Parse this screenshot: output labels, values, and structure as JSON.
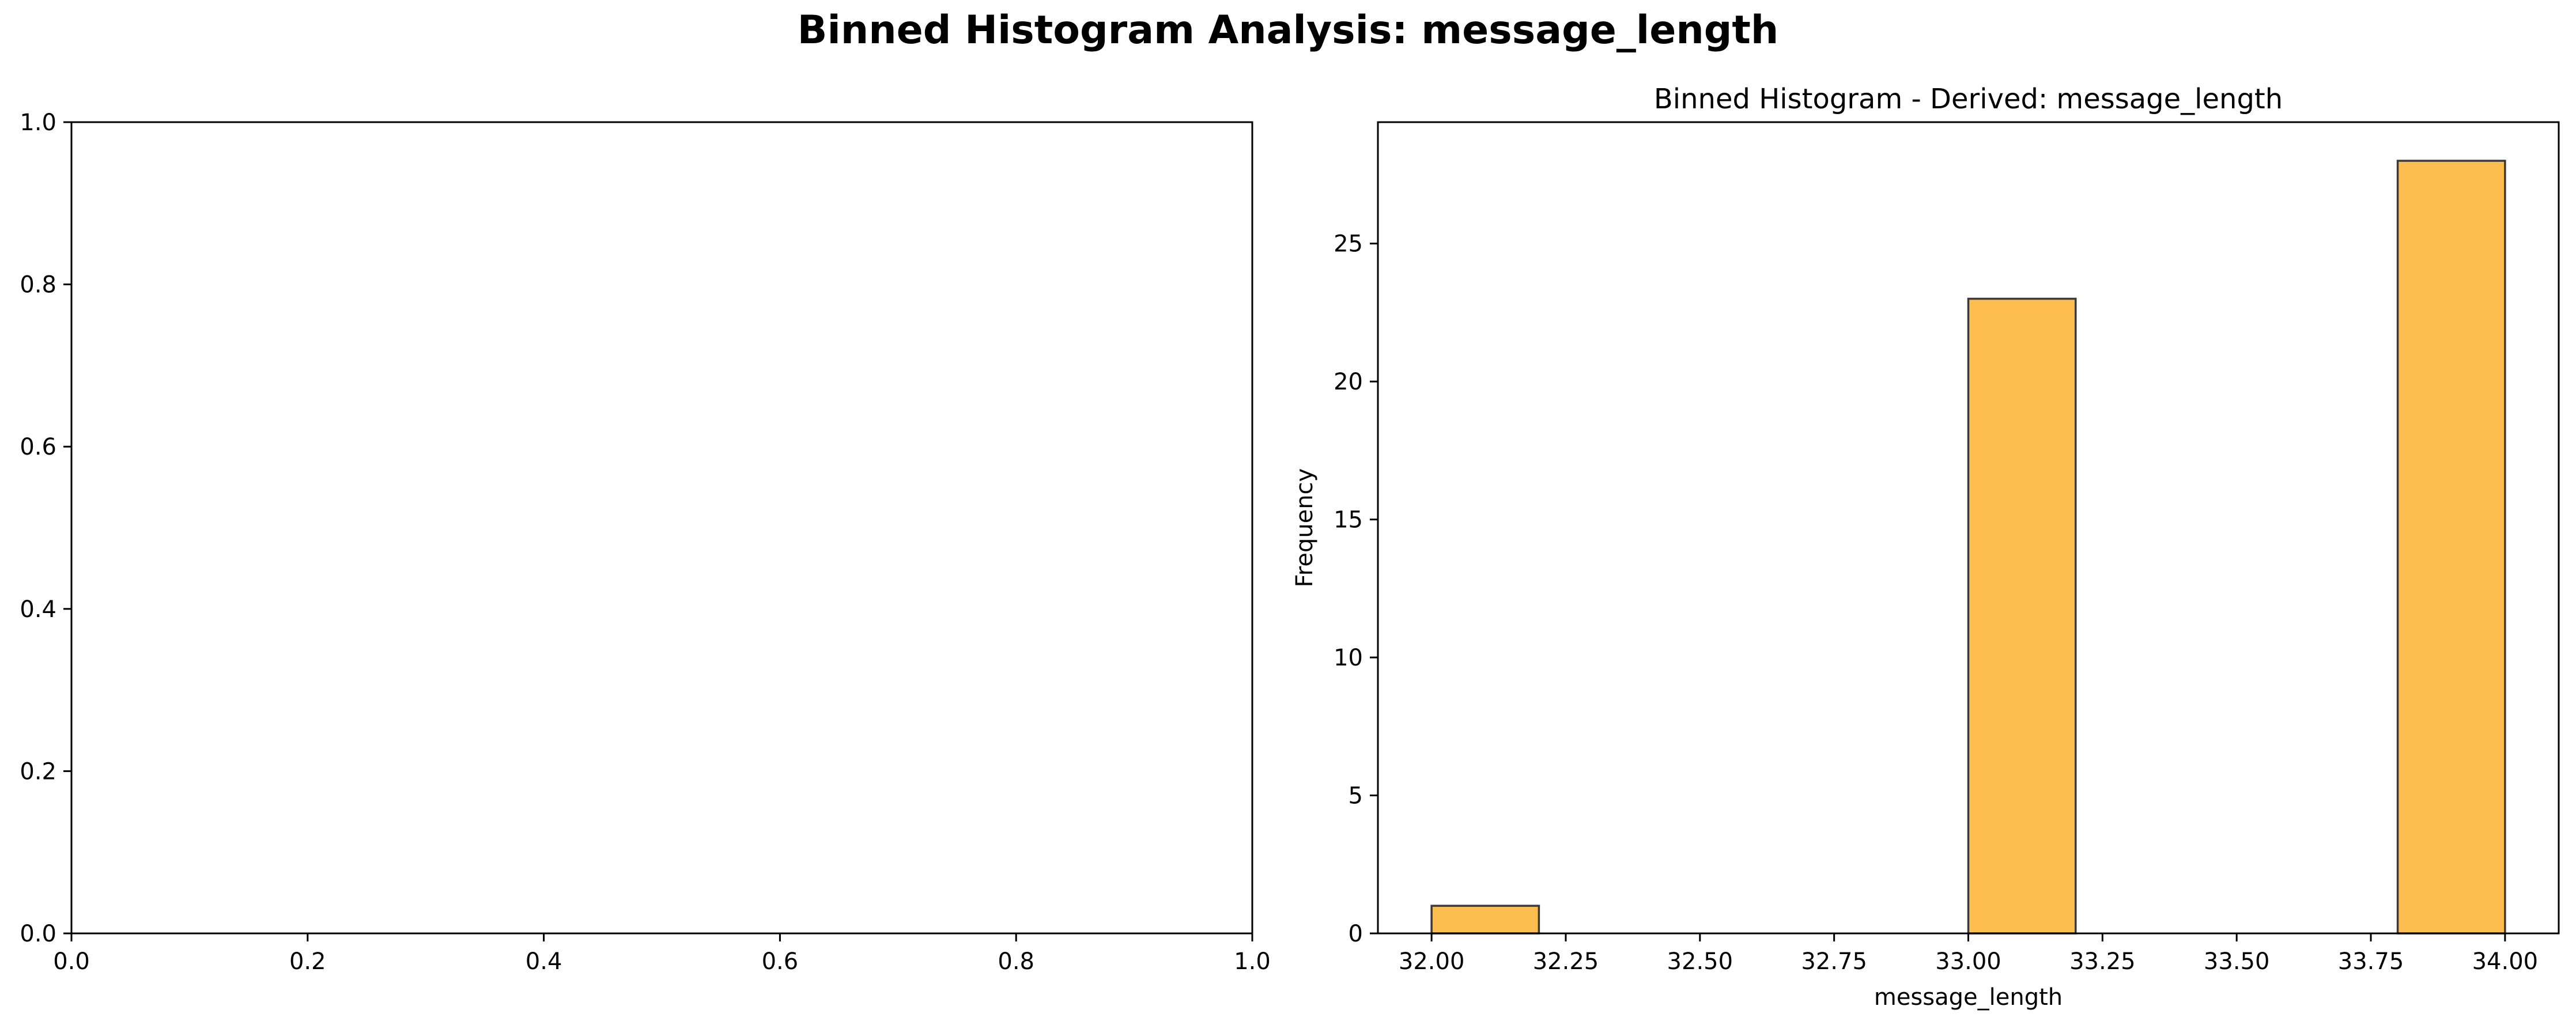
{
  "figure": {
    "title": "Binned Histogram Analysis: message_length"
  },
  "chart_data": [
    {
      "type": "bar",
      "title": "",
      "xlabel": "",
      "ylabel": "",
      "xlim": [
        0.0,
        1.0
      ],
      "ylim": [
        0.0,
        1.0
      ],
      "xticks": [
        "0.0",
        "0.2",
        "0.4",
        "0.6",
        "0.8",
        "1.0"
      ],
      "yticks": [
        "0.0",
        "0.2",
        "0.4",
        "0.6",
        "0.8",
        "1.0"
      ],
      "bins": [],
      "grid": false
    },
    {
      "type": "bar",
      "title": "Binned Histogram - Derived: message_length",
      "xlabel": "message_length",
      "ylabel": "Frequency",
      "xlim": [
        31.9,
        34.1
      ],
      "ylim": [
        0,
        29.4
      ],
      "xticks": [
        "32.00",
        "32.25",
        "32.50",
        "32.75",
        "33.00",
        "33.25",
        "33.50",
        "33.75",
        "34.00"
      ],
      "yticks": [
        "0",
        "5",
        "10",
        "15",
        "20",
        "25"
      ],
      "bins": [
        {
          "x0": 32.0,
          "x1": 32.2,
          "count": 1
        },
        {
          "x0": 32.2,
          "x1": 32.4,
          "count": 0
        },
        {
          "x0": 32.4,
          "x1": 32.6,
          "count": 0
        },
        {
          "x0": 32.6,
          "x1": 32.8,
          "count": 0
        },
        {
          "x0": 32.8,
          "x1": 33.0,
          "count": 0
        },
        {
          "x0": 33.0,
          "x1": 33.2,
          "count": 23
        },
        {
          "x0": 33.2,
          "x1": 33.4,
          "count": 0
        },
        {
          "x0": 33.4,
          "x1": 33.6,
          "count": 0
        },
        {
          "x0": 33.6,
          "x1": 33.8,
          "count": 0
        },
        {
          "x0": 33.8,
          "x1": 34.0,
          "count": 28
        }
      ],
      "bar_color": "#FDBE4F",
      "edge_color": "#3a3a3a",
      "grid": false
    }
  ]
}
